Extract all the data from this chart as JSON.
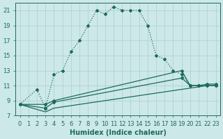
{
  "xlabel": "Humidex (Indice chaleur)",
  "ylabel": "",
  "background_color": "#cde8e8",
  "grid_color": "#aacfcf",
  "line_color": "#1a6b5a",
  "xlim": [
    -0.5,
    23.5
  ],
  "ylim": [
    7,
    22
  ],
  "xticks": [
    0,
    1,
    2,
    3,
    4,
    5,
    6,
    7,
    8,
    9,
    10,
    11,
    12,
    13,
    14,
    15,
    16,
    17,
    18,
    19,
    20,
    21,
    22,
    23
  ],
  "yticks": [
    7,
    9,
    11,
    13,
    15,
    17,
    19,
    21
  ],
  "series1_x": [
    0,
    2,
    3,
    4,
    5,
    6,
    7,
    8,
    9,
    10,
    11,
    12,
    13,
    14,
    15,
    16,
    17,
    18,
    19,
    20,
    21,
    22,
    23
  ],
  "series1_y": [
    8.5,
    10.5,
    8.0,
    12.5,
    13.0,
    15.5,
    17.0,
    19.0,
    21.0,
    20.5,
    21.5,
    21.0,
    21.0,
    21.0,
    19.0,
    15.0,
    14.5,
    13.0,
    12.5,
    11.0,
    11.0,
    11.0,
    11.0
  ],
  "series2_x": [
    0,
    3,
    4,
    19,
    20,
    21,
    22,
    23
  ],
  "series2_y": [
    8.5,
    8.5,
    9.0,
    13.0,
    11.0,
    11.0,
    11.2,
    11.2
  ],
  "series3_x": [
    0,
    3,
    4,
    19,
    20,
    21,
    22,
    23
  ],
  "series3_y": [
    8.5,
    8.0,
    8.8,
    12.0,
    11.0,
    11.0,
    11.0,
    11.0
  ],
  "series4_x": [
    0,
    3,
    4,
    22,
    23
  ],
  "series4_y": [
    8.5,
    7.5,
    8.0,
    11.0,
    11.0
  ],
  "font_size_ticks": 6,
  "font_size_xlabel": 7,
  "marker": "D",
  "marker_size": 2.0,
  "linewidth": 0.9
}
